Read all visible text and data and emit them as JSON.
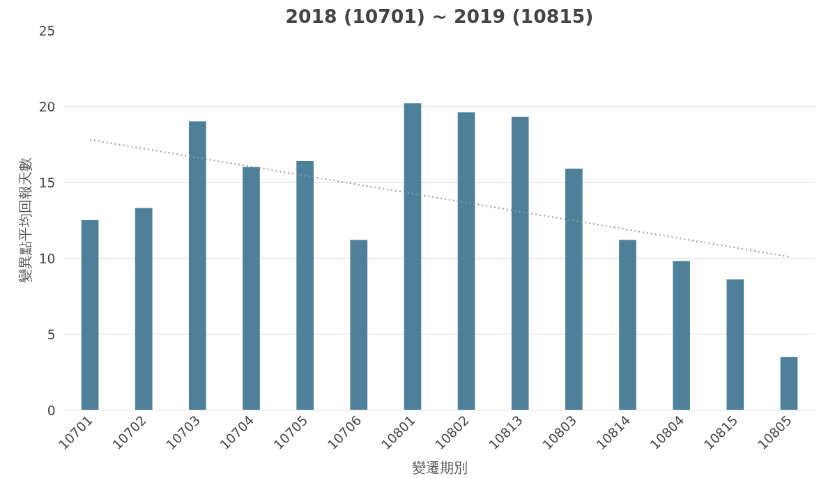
{
  "chart_data": {
    "type": "bar",
    "title": "2018 (10701) ~ 2019 (10815)",
    "xlabel": "變遷期別",
    "ylabel": "變異點平均回報天數",
    "categories": [
      "10701",
      "10702",
      "10703",
      "10704",
      "10705",
      "10706",
      "10801",
      "10802",
      "10813",
      "10803",
      "10814",
      "10804",
      "10815",
      "10805"
    ],
    "series": [
      {
        "color": "#4e8199",
        "values": [
          12.5,
          13.3,
          19.0,
          16.0,
          16.4,
          11.2,
          20.2,
          19.6,
          19.3,
          15.9,
          11.2,
          9.8,
          8.6,
          3.5
        ]
      },
      {
        "type": "line",
        "color": "#8a9aa6",
        "line_style": "dotted",
        "x": [
          "10701",
          "10805"
        ],
        "values": [
          17.8,
          10.1
        ]
      }
    ],
    "ylim": [
      0,
      25
    ],
    "yticks": [
      0,
      5,
      10,
      15,
      20,
      25
    ],
    "grid": "y"
  }
}
